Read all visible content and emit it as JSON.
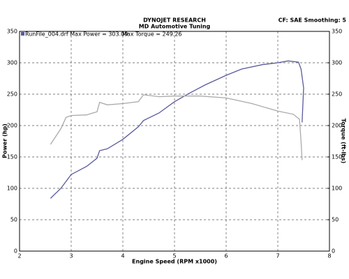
{
  "chart_data": {
    "type": "line",
    "title": "DYNOJET RESEARCH",
    "subtitle": "MD Automotive Tuning",
    "settings_label": "CF: SAE  Smoothing: 5",
    "x_label": "Engine Speed (RPM x1000)",
    "y_label": "Power (hp)",
    "y2_label": "Torque (ft-lbs)",
    "xlim": [
      2,
      8
    ],
    "xticks": [
      2,
      3,
      4,
      5,
      6,
      7,
      8
    ],
    "ylim": [
      0,
      350
    ],
    "yticks": [
      0,
      50,
      100,
      150,
      200,
      250,
      300,
      350
    ],
    "y2lim": [
      0,
      350
    ],
    "y2ticks": [
      0,
      50,
      100,
      150,
      200,
      250,
      300,
      350
    ],
    "grid": true,
    "series": [
      {
        "name": "RunFile_004.drf Max Power = 303.09",
        "color": "#5a5a9a",
        "x": [
          2.6,
          2.8,
          3.0,
          3.3,
          3.5,
          3.55,
          3.7,
          4.0,
          4.3,
          4.4,
          4.7,
          5.0,
          5.3,
          5.6,
          6.0,
          6.3,
          6.7,
          7.0,
          7.2,
          7.4,
          7.45,
          7.5,
          7.47
        ],
        "values": [
          84,
          100,
          122,
          135,
          148,
          160,
          163,
          178,
          198,
          208,
          220,
          238,
          252,
          265,
          280,
          290,
          297,
          300,
          303,
          301,
          290,
          260,
          205
        ]
      },
      {
        "name": "Max Torque = 249.26",
        "color": "#aaaaaa",
        "axis": "y2",
        "x": [
          2.6,
          2.8,
          2.9,
          3.0,
          3.3,
          3.5,
          3.55,
          3.7,
          4.0,
          4.3,
          4.4,
          4.7,
          5.0,
          5.5,
          6.0,
          6.5,
          7.0,
          7.3,
          7.42,
          7.45,
          7.47
        ],
        "values": [
          170,
          195,
          213,
          216,
          217,
          222,
          237,
          233,
          235,
          238,
          249,
          246,
          247,
          247,
          244,
          235,
          223,
          218,
          210,
          175,
          145
        ]
      }
    ]
  }
}
